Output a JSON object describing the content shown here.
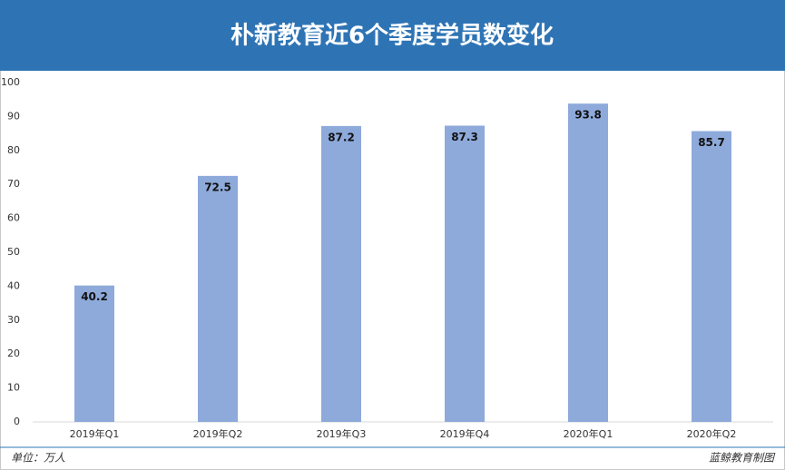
{
  "chart_data": {
    "type": "bar",
    "title": "朴新教育近6个季度学员数变化",
    "categories": [
      "2019年Q1",
      "2019年Q2",
      "2019年Q3",
      "2019年Q4",
      "2020年Q1",
      "2020年Q2"
    ],
    "values": [
      40.2,
      72.5,
      87.2,
      87.3,
      93.8,
      85.7
    ],
    "color": "#8eaadb",
    "ylim": [
      0,
      100
    ],
    "yticks": [
      0,
      10,
      20,
      30,
      40,
      50,
      60,
      70,
      80,
      90,
      100
    ],
    "grid": false,
    "note": "单位：万人",
    "source": "蓝鲸教育制图"
  }
}
